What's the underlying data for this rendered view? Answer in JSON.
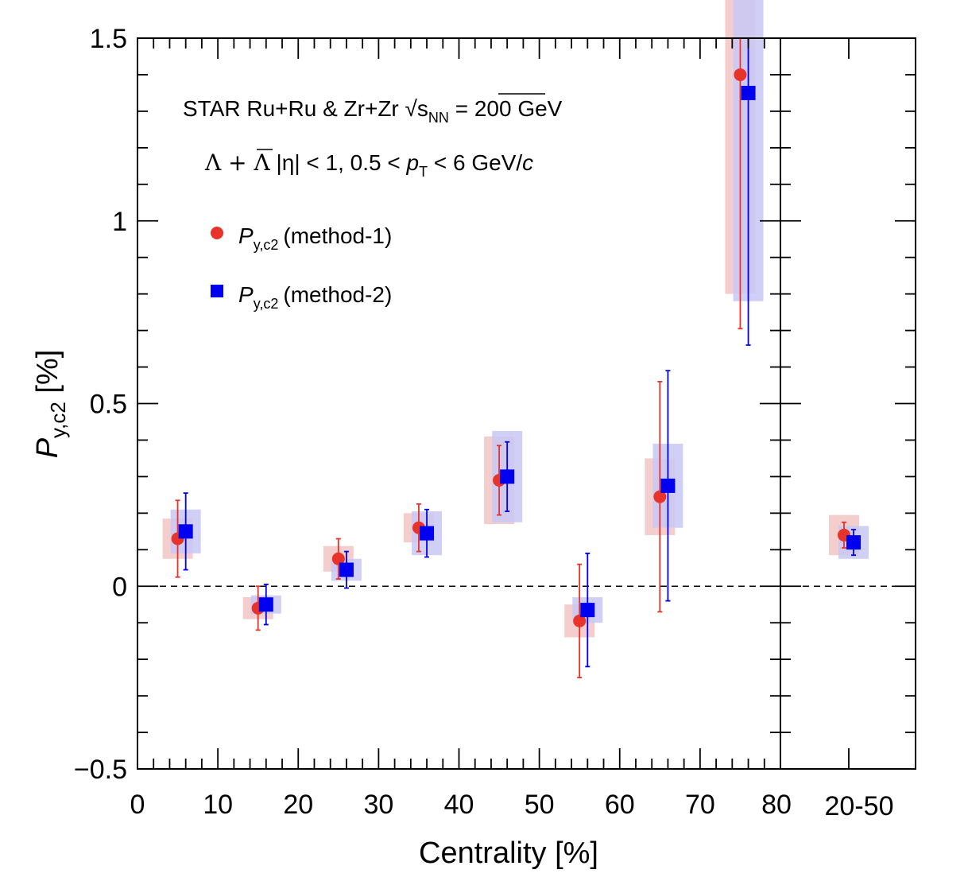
{
  "chart_data": {
    "type": "scatter",
    "title": "",
    "xlabel": "Centrality [%]",
    "ylabel_main": "P",
    "ylabel_sub": "y,c2",
    "ylabel_suffix": " [%]",
    "xlim": [
      0,
      80
    ],
    "ylim": [
      -0.5,
      1.5
    ],
    "grid": false,
    "x_ticks": [
      "0",
      "10",
      "20",
      "30",
      "40",
      "50",
      "60",
      "70",
      "80"
    ],
    "y_ticks": [
      "−0.5",
      "0",
      "0.5",
      "1",
      "1.5"
    ],
    "side_panel_label": "20-50",
    "zero_line": true,
    "legend_placement": "top-left",
    "annotation_line1": {
      "prefix": "STAR  Ru+Ru & Zr+Zr  ",
      "sqrt": "√",
      "s": "s",
      "nn": "NN",
      "suffix": " = 200 GeV"
    },
    "annotation_line2": {
      "lambda": "Λ + ",
      "lambdabar": "Λ",
      "eta": "  |η| < 1, 0.5 < ",
      "p": "p",
      "t": "T",
      "mid": " < 6 GeV/",
      "c": "c"
    },
    "series": [
      {
        "name": "(method-1)",
        "label_main": "P",
        "label_sub": "y,c2",
        "marker": "circle",
        "color": "#e8332a",
        "sys_color": "#f2c4c4",
        "x": [
          5,
          15,
          25,
          35,
          45,
          55,
          65,
          75
        ],
        "y": [
          0.13,
          -0.06,
          0.075,
          0.16,
          0.29,
          -0.095,
          0.245,
          1.4
        ],
        "stat_err": [
          0.105,
          0.06,
          0.055,
          0.065,
          0.095,
          0.155,
          0.315,
          0.695
        ],
        "sys_err": [
          0.055,
          0.03,
          0.035,
          0.04,
          0.12,
          0.045,
          0.105,
          0.6
        ]
      },
      {
        "name": "(method-2)",
        "label_main": "P",
        "label_sub": "y,c2",
        "marker": "square",
        "color": "#0000f0",
        "sys_color": "#c8c8f4",
        "x": [
          6,
          16,
          26,
          36,
          46,
          56,
          66,
          76
        ],
        "y": [
          0.15,
          -0.05,
          0.045,
          0.145,
          0.3,
          -0.065,
          0.275,
          1.35
        ],
        "stat_err": [
          0.105,
          0.055,
          0.05,
          0.065,
          0.095,
          0.155,
          0.315,
          0.69
        ],
        "sys_err": [
          0.06,
          0.025,
          0.03,
          0.06,
          0.125,
          0.035,
          0.115,
          0.57
        ]
      }
    ],
    "side_points": [
      {
        "series": 0,
        "y": 0.14,
        "stat_err": 0.035,
        "sys_err": 0.055
      },
      {
        "series": 1,
        "y": 0.12,
        "stat_err": 0.035,
        "sys_err": 0.045
      }
    ]
  }
}
